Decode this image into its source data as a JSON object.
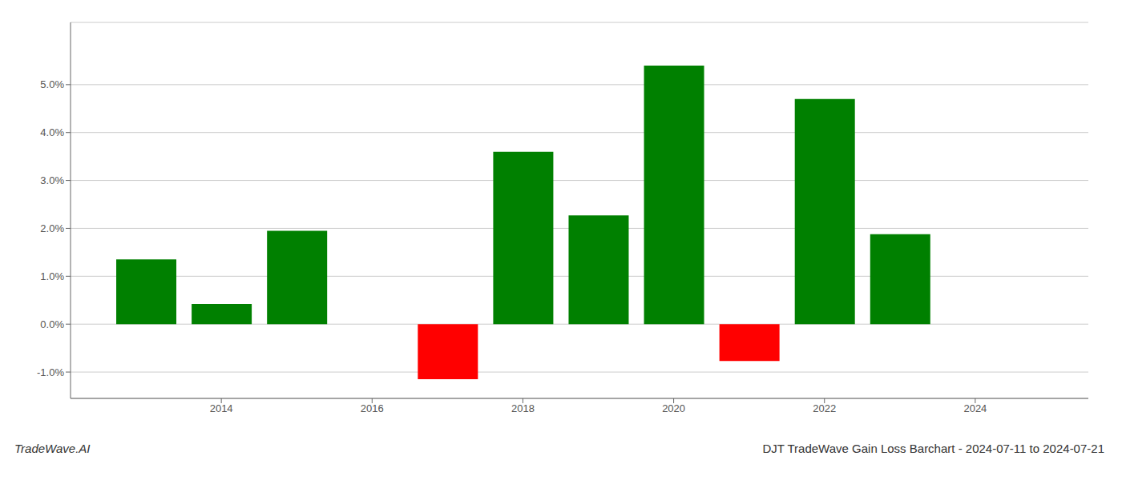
{
  "chart_data": {
    "type": "bar",
    "title": "DJT TradeWave Gain Loss Barchart - 2024-07-11 to 2024-07-21",
    "annotations": [
      "TradeWave.AI"
    ],
    "x": [
      2013,
      2014,
      2015,
      2017,
      2018,
      2019,
      2020,
      2021,
      2022,
      2023
    ],
    "values": [
      1.35,
      0.42,
      1.95,
      -1.15,
      3.6,
      2.27,
      5.4,
      -0.77,
      4.7,
      1.88
    ],
    "colors": [
      "#008000",
      "#008000",
      "#008000",
      "#ff0000",
      "#008000",
      "#008000",
      "#008000",
      "#ff0000",
      "#008000",
      "#008000"
    ],
    "xlim": [
      2012.0,
      2025.5
    ],
    "ylim": [
      -1.55,
      6.3
    ],
    "xticks": [
      2014,
      2016,
      2018,
      2020,
      2022,
      2024
    ],
    "yticks": [
      {
        "value": -1.0,
        "label": "-1.0%"
      },
      {
        "value": 0.0,
        "label": "0.0%"
      },
      {
        "value": 1.0,
        "label": "1.0%"
      },
      {
        "value": 2.0,
        "label": "2.0%"
      },
      {
        "value": 3.0,
        "label": "3.0%"
      },
      {
        "value": 4.0,
        "label": "4.0%"
      },
      {
        "value": 5.0,
        "label": "5.0%"
      }
    ],
    "grid": "y"
  }
}
